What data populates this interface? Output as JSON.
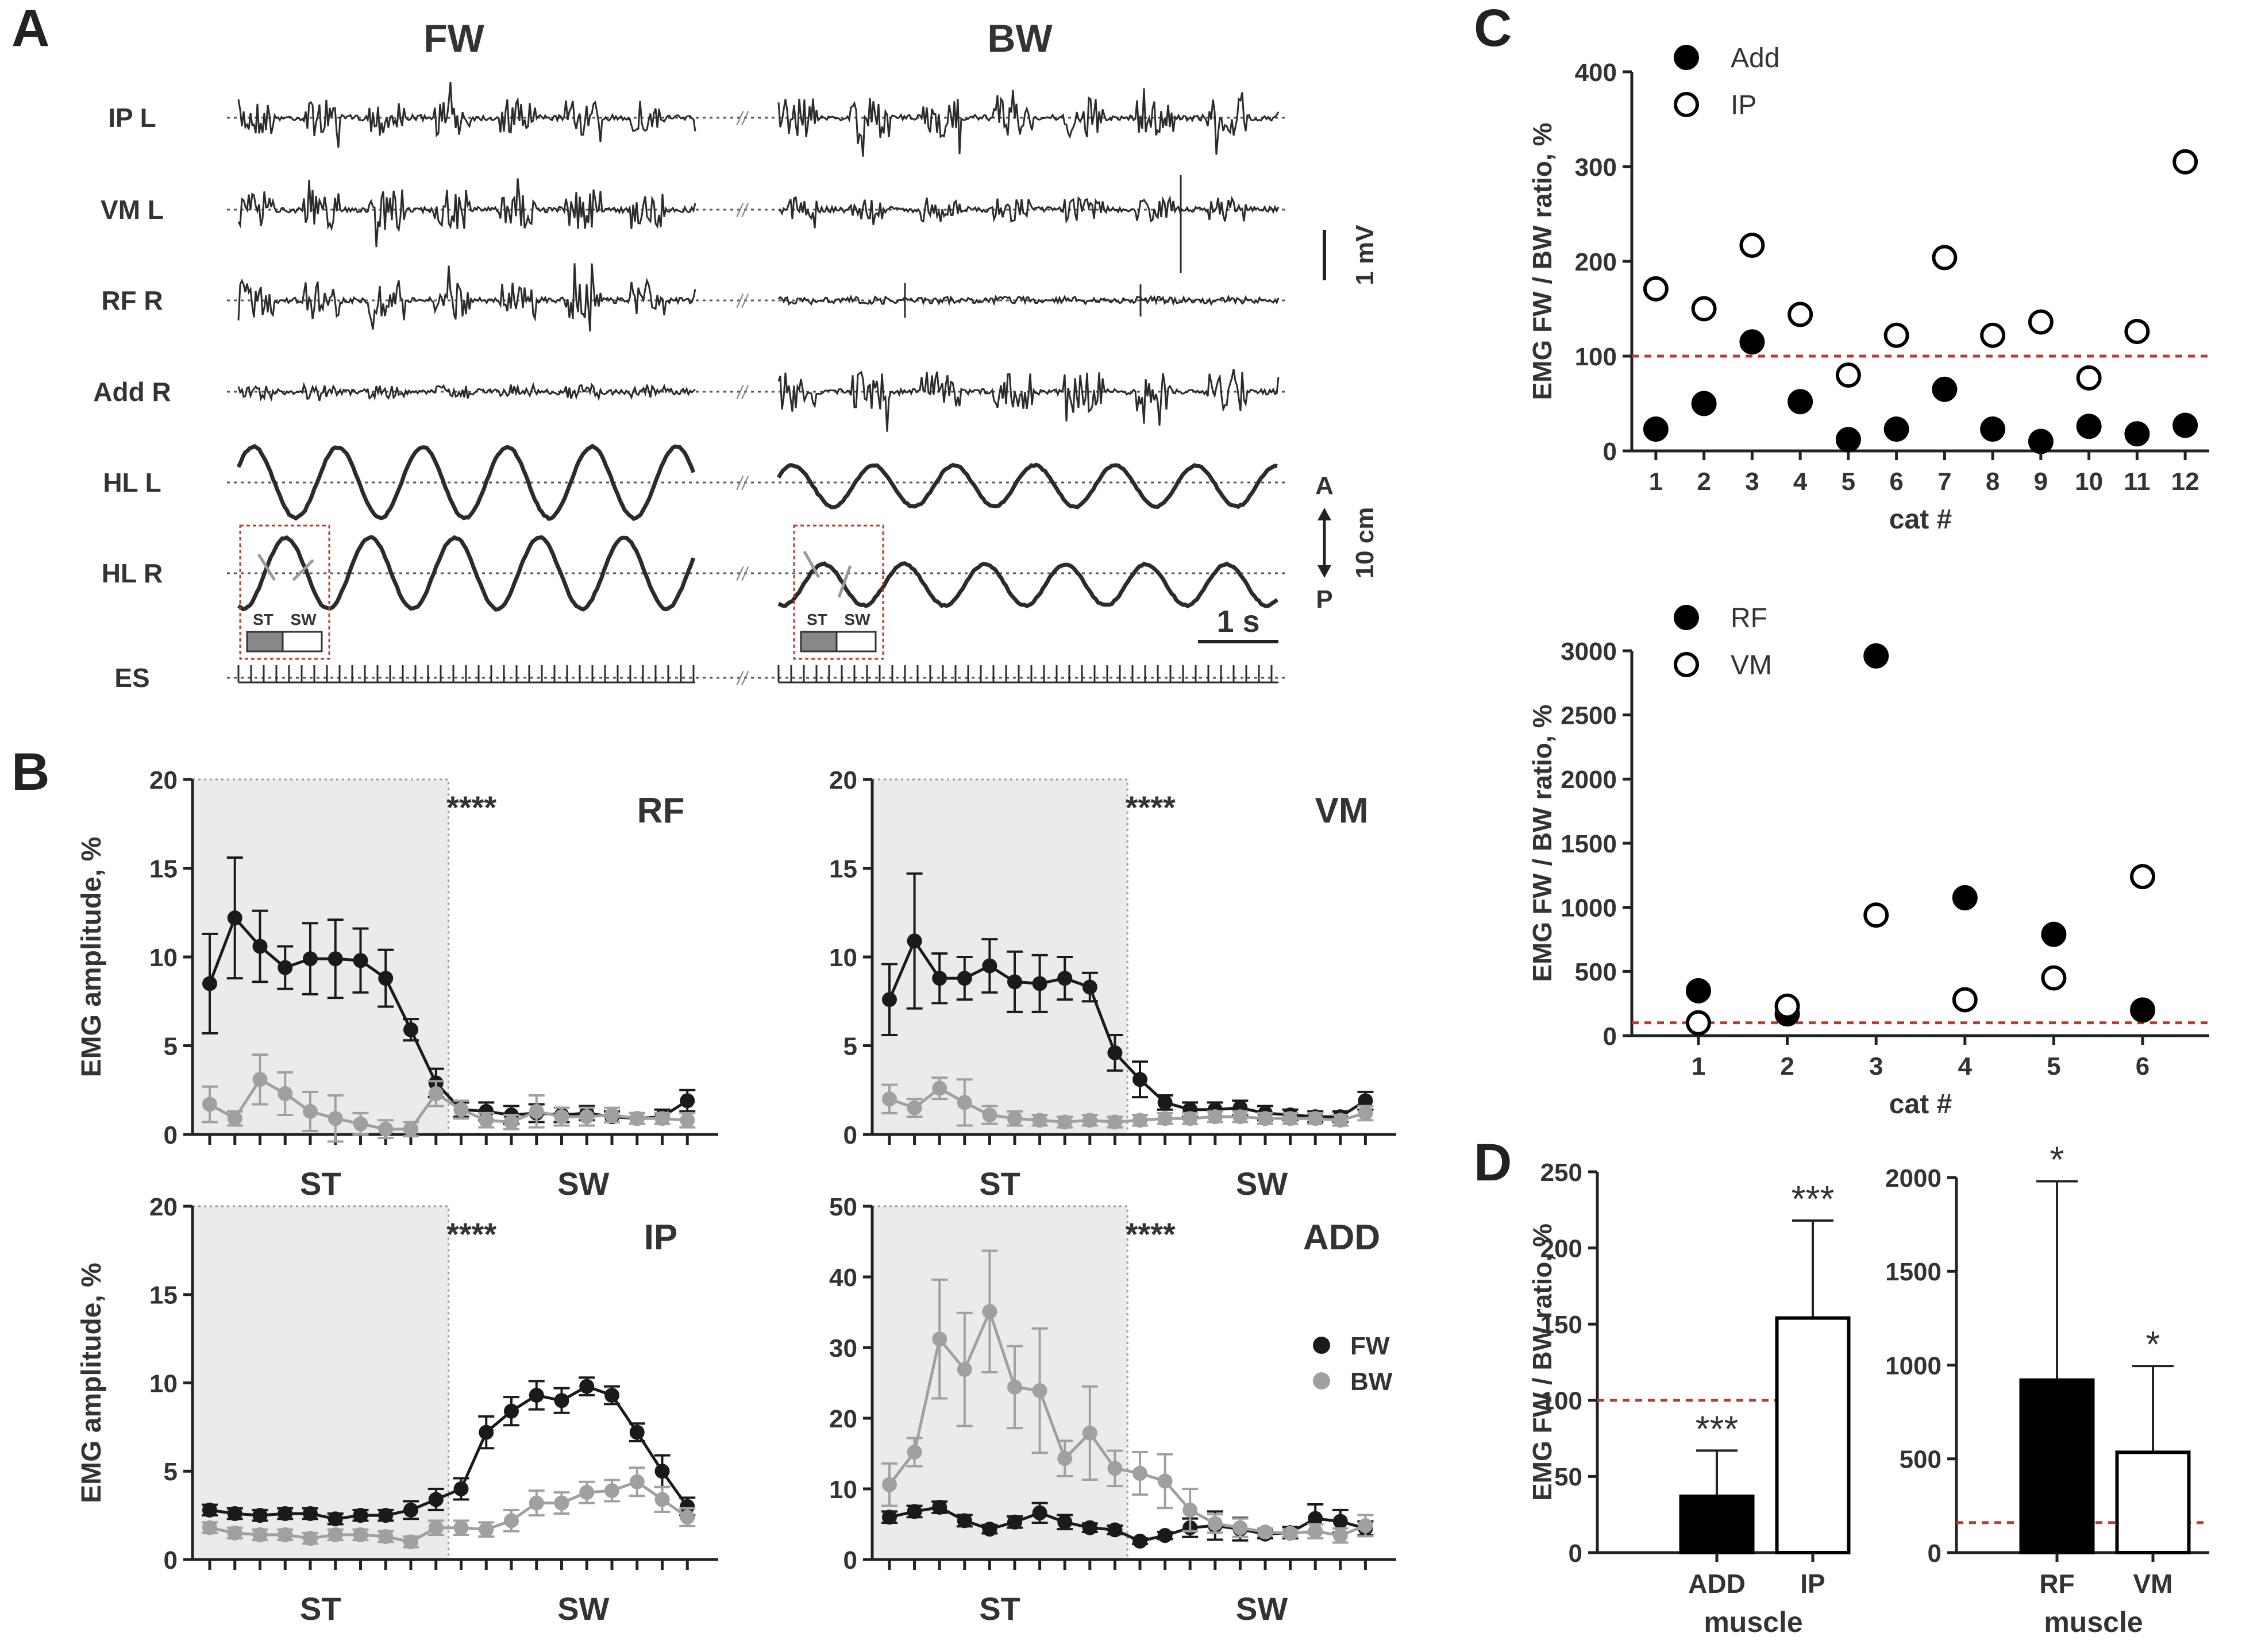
{
  "panel_letters": {
    "a": "A",
    "b": "B",
    "c": "C",
    "d": "D"
  },
  "panelA": {
    "col_fw": "FW",
    "col_bw": "BW",
    "rows": [
      {
        "label": "IP L",
        "type": "emg"
      },
      {
        "label": "VM L",
        "type": "emg"
      },
      {
        "label": "RF R",
        "type": "emg"
      },
      {
        "label": "Add R",
        "type": "emg"
      },
      {
        "label": "HL L",
        "type": "kin"
      },
      {
        "label": "HL R",
        "type": "kin"
      },
      {
        "label": "ES",
        "type": "stim"
      }
    ],
    "scale_mv": "1 mV",
    "scale_cm": "10 cm",
    "scale_s": "1 s",
    "label_a": "A",
    "label_p": "P",
    "inset_st": "ST",
    "inset_sw": "SW",
    "break_mark": "//"
  },
  "panelB_common": {
    "ylabel": "EMG amplitude, %",
    "xlabel_st": "ST",
    "xlabel_sw": "SW",
    "significance": "****",
    "legend": [
      {
        "name": "FW",
        "color": "#1a1a1a"
      },
      {
        "name": "BW",
        "color": "#a0a0a0"
      }
    ]
  },
  "chart_data": [
    {
      "type": "line",
      "title": "RF",
      "ylabel": "EMG amplitude, %",
      "xlabel": "ST / SW",
      "ylim": [
        0,
        20
      ],
      "yticks": [
        0,
        5,
        10,
        15,
        20
      ],
      "x": [
        1,
        2,
        3,
        4,
        5,
        6,
        7,
        8,
        9,
        10,
        11,
        12,
        13,
        14,
        15,
        16,
        17,
        18,
        19,
        20
      ],
      "series": [
        {
          "name": "FW",
          "values": [
            8.5,
            12.2,
            10.6,
            9.4,
            9.9,
            9.9,
            9.8,
            8.8,
            5.9,
            2.9,
            1.4,
            1.3,
            1.1,
            1.2,
            1.1,
            1.2,
            1.0,
            0.9,
            1.0,
            1.9
          ],
          "err": [
            2.8,
            3.4,
            2.0,
            1.2,
            2.0,
            2.2,
            1.8,
            1.6,
            0.6,
            0.8,
            0.4,
            0.5,
            0.5,
            0.5,
            0.4,
            0.4,
            0.3,
            0.3,
            0.4,
            0.6
          ]
        },
        {
          "name": "BW",
          "values": [
            1.7,
            0.9,
            3.1,
            2.3,
            1.3,
            0.9,
            0.6,
            0.3,
            0.3,
            2.3,
            1.4,
            0.8,
            0.7,
            1.3,
            1.0,
            1.0,
            1.1,
            0.9,
            0.9,
            0.8
          ],
          "err": [
            1.0,
            0.4,
            1.4,
            1.2,
            1.1,
            1.3,
            0.6,
            0.5,
            0.4,
            0.7,
            0.5,
            0.4,
            0.4,
            0.9,
            0.5,
            0.5,
            0.4,
            0.3,
            0.3,
            0.4
          ]
        }
      ]
    },
    {
      "type": "line",
      "title": "VM",
      "ylabel": "EMG amplitude, %",
      "xlabel": "ST / SW",
      "ylim": [
        0,
        20
      ],
      "yticks": [
        0,
        5,
        10,
        15,
        20
      ],
      "x": [
        1,
        2,
        3,
        4,
        5,
        6,
        7,
        8,
        9,
        10,
        11,
        12,
        13,
        14,
        15,
        16,
        17,
        18,
        19,
        20
      ],
      "series": [
        {
          "name": "FW",
          "values": [
            7.6,
            10.9,
            8.8,
            8.8,
            9.5,
            8.6,
            8.5,
            8.8,
            8.3,
            4.6,
            3.1,
            1.8,
            1.4,
            1.4,
            1.5,
            1.2,
            1.1,
            1.0,
            1.0,
            1.9
          ],
          "err": [
            2.0,
            3.8,
            1.4,
            1.2,
            1.5,
            1.7,
            1.6,
            1.2,
            0.8,
            1.0,
            1.0,
            0.4,
            0.4,
            0.4,
            0.4,
            0.4,
            0.3,
            0.3,
            0.3,
            0.5
          ]
        },
        {
          "name": "BW",
          "values": [
            2.0,
            1.5,
            2.6,
            1.8,
            1.1,
            0.9,
            0.8,
            0.7,
            0.8,
            0.7,
            0.8,
            0.9,
            0.9,
            1.0,
            1.0,
            0.9,
            0.9,
            0.9,
            0.8,
            1.2
          ],
          "err": [
            0.8,
            0.5,
            0.6,
            1.3,
            0.5,
            0.4,
            0.3,
            0.3,
            0.3,
            0.3,
            0.3,
            0.3,
            0.3,
            0.3,
            0.3,
            0.3,
            0.3,
            0.3,
            0.3,
            0.4
          ]
        }
      ]
    },
    {
      "type": "line",
      "title": "IP",
      "ylabel": "EMG amplitude, %",
      "xlabel": "ST / SW",
      "ylim": [
        0,
        20
      ],
      "yticks": [
        0,
        5,
        10,
        15,
        20
      ],
      "x": [
        1,
        2,
        3,
        4,
        5,
        6,
        7,
        8,
        9,
        10,
        11,
        12,
        13,
        14,
        15,
        16,
        17,
        18,
        19,
        20
      ],
      "series": [
        {
          "name": "FW",
          "values": [
            2.8,
            2.6,
            2.5,
            2.6,
            2.6,
            2.3,
            2.5,
            2.5,
            2.8,
            3.4,
            4.0,
            7.2,
            8.4,
            9.3,
            9.0,
            9.8,
            9.3,
            7.2,
            5.0,
            3.0
          ],
          "err": [
            0.3,
            0.3,
            0.3,
            0.3,
            0.3,
            0.3,
            0.3,
            0.3,
            0.5,
            0.6,
            0.6,
            0.9,
            0.8,
            0.8,
            0.7,
            0.5,
            0.5,
            0.5,
            0.9,
            0.5
          ]
        },
        {
          "name": "BW",
          "values": [
            1.8,
            1.5,
            1.4,
            1.4,
            1.2,
            1.4,
            1.4,
            1.3,
            1.0,
            1.8,
            1.8,
            1.7,
            2.2,
            3.2,
            3.2,
            3.8,
            3.9,
            4.4,
            3.4,
            2.4
          ],
          "err": [
            0.3,
            0.3,
            0.3,
            0.3,
            0.3,
            0.3,
            0.3,
            0.3,
            0.3,
            0.4,
            0.4,
            0.4,
            0.6,
            0.7,
            0.6,
            0.6,
            0.6,
            0.8,
            0.7,
            0.5
          ]
        }
      ]
    },
    {
      "type": "line",
      "title": "ADD",
      "ylabel": "EMG amplitude, %",
      "xlabel": "ST / SW",
      "ylim": [
        0,
        50
      ],
      "yticks": [
        0,
        10,
        20,
        30,
        40,
        50
      ],
      "x": [
        1,
        2,
        3,
        4,
        5,
        6,
        7,
        8,
        9,
        10,
        11,
        12,
        13,
        14,
        15,
        16,
        17,
        18,
        19,
        20
      ],
      "series": [
        {
          "name": "FW",
          "values": [
            6.0,
            6.8,
            7.4,
            5.5,
            4.3,
            5.3,
            6.6,
            5.3,
            4.5,
            4.2,
            2.6,
            3.4,
            4.5,
            4.8,
            4.3,
            3.6,
            3.8,
            5.8,
            5.4,
            4.4
          ],
          "err": [
            0.8,
            0.8,
            0.8,
            0.8,
            0.6,
            0.8,
            1.4,
            1.0,
            0.6,
            0.6,
            0.4,
            0.5,
            1.3,
            2.0,
            1.6,
            0.6,
            0.8,
            2.0,
            1.6,
            1.0
          ]
        },
        {
          "name": "BW",
          "values": [
            10.6,
            15.2,
            31.2,
            26.9,
            35.1,
            24.4,
            23.9,
            14.3,
            17.9,
            12.9,
            12.2,
            11.1,
            7.0,
            5.1,
            4.5,
            3.9,
            3.7,
            4.0,
            3.4,
            4.8
          ],
          "err": [
            3.0,
            2.0,
            8.4,
            8.0,
            8.6,
            5.8,
            8.8,
            2.5,
            6.6,
            2.5,
            3.0,
            3.8,
            3.0,
            1.3,
            1.3,
            0.5,
            0.5,
            1.0,
            1.0,
            1.5
          ]
        }
      ]
    },
    {
      "type": "scatter",
      "ylabel": "EMG FW / BW ratio, %",
      "xlabel": "cat #",
      "xticks": [
        1,
        2,
        3,
        4,
        5,
        6,
        7,
        8,
        9,
        10,
        11,
        12
      ],
      "ylim": [
        0,
        400
      ],
      "yticks": [
        0,
        100,
        200,
        300,
        400
      ],
      "reference_line": 100,
      "series": [
        {
          "name": "Add",
          "marker": "filled",
          "x": [
            1,
            2,
            3,
            4,
            5,
            6,
            7,
            8,
            9,
            10,
            11,
            12
          ],
          "values": [
            23,
            50,
            115,
            52,
            12,
            23,
            65,
            23,
            10,
            26,
            18,
            27
          ]
        },
        {
          "name": "IP",
          "marker": "open",
          "x": [
            1,
            2,
            3,
            4,
            5,
            6,
            7,
            8,
            9,
            10,
            11,
            12
          ],
          "values": [
            171,
            150,
            217,
            144,
            80,
            122,
            204,
            122,
            136,
            77,
            126,
            305
          ]
        }
      ]
    },
    {
      "type": "scatter",
      "ylabel": "EMG FW / BW ratio, %",
      "xlabel": "cat #",
      "xticks": [
        1,
        2,
        3,
        4,
        5,
        6
      ],
      "ylim": [
        0,
        3000
      ],
      "yticks": [
        0,
        500,
        1000,
        1500,
        2000,
        2500,
        3000
      ],
      "reference_line": 100,
      "series": [
        {
          "name": "RF",
          "marker": "filled",
          "x": [
            1,
            2,
            3,
            4,
            5,
            6
          ],
          "values": [
            350,
            170,
            2960,
            1075,
            790,
            200
          ]
        },
        {
          "name": "VM",
          "marker": "open",
          "x": [
            1,
            2,
            3,
            4,
            5,
            6
          ],
          "values": [
            100,
            230,
            940,
            280,
            450,
            1240
          ]
        }
      ]
    },
    {
      "type": "bar",
      "ylabel": "EMG FW / BW ratio, %",
      "xlabel": "muscle",
      "categories": [
        "ADD",
        "IP"
      ],
      "values": [
        37,
        154
      ],
      "err": [
        30,
        64
      ],
      "significance": [
        "***",
        "***"
      ],
      "fills": [
        "#000000",
        "#ffffff"
      ],
      "ylim": [
        0,
        250
      ],
      "yticks": [
        0,
        50,
        100,
        150,
        200,
        250
      ],
      "reference_line": 100
    },
    {
      "type": "bar",
      "ylabel": "EMG FW / BW ratio, %",
      "xlabel": "muscle",
      "categories": [
        "RF",
        "VM"
      ],
      "values": [
        920,
        535
      ],
      "err": [
        1060,
        460
      ],
      "significance": [
        "*",
        "*"
      ],
      "fills": [
        "#000000",
        "#ffffff"
      ],
      "ylim": [
        0,
        2000
      ],
      "yticks": [
        0,
        500,
        1000,
        1500,
        2000
      ],
      "reference_line": 160
    }
  ]
}
